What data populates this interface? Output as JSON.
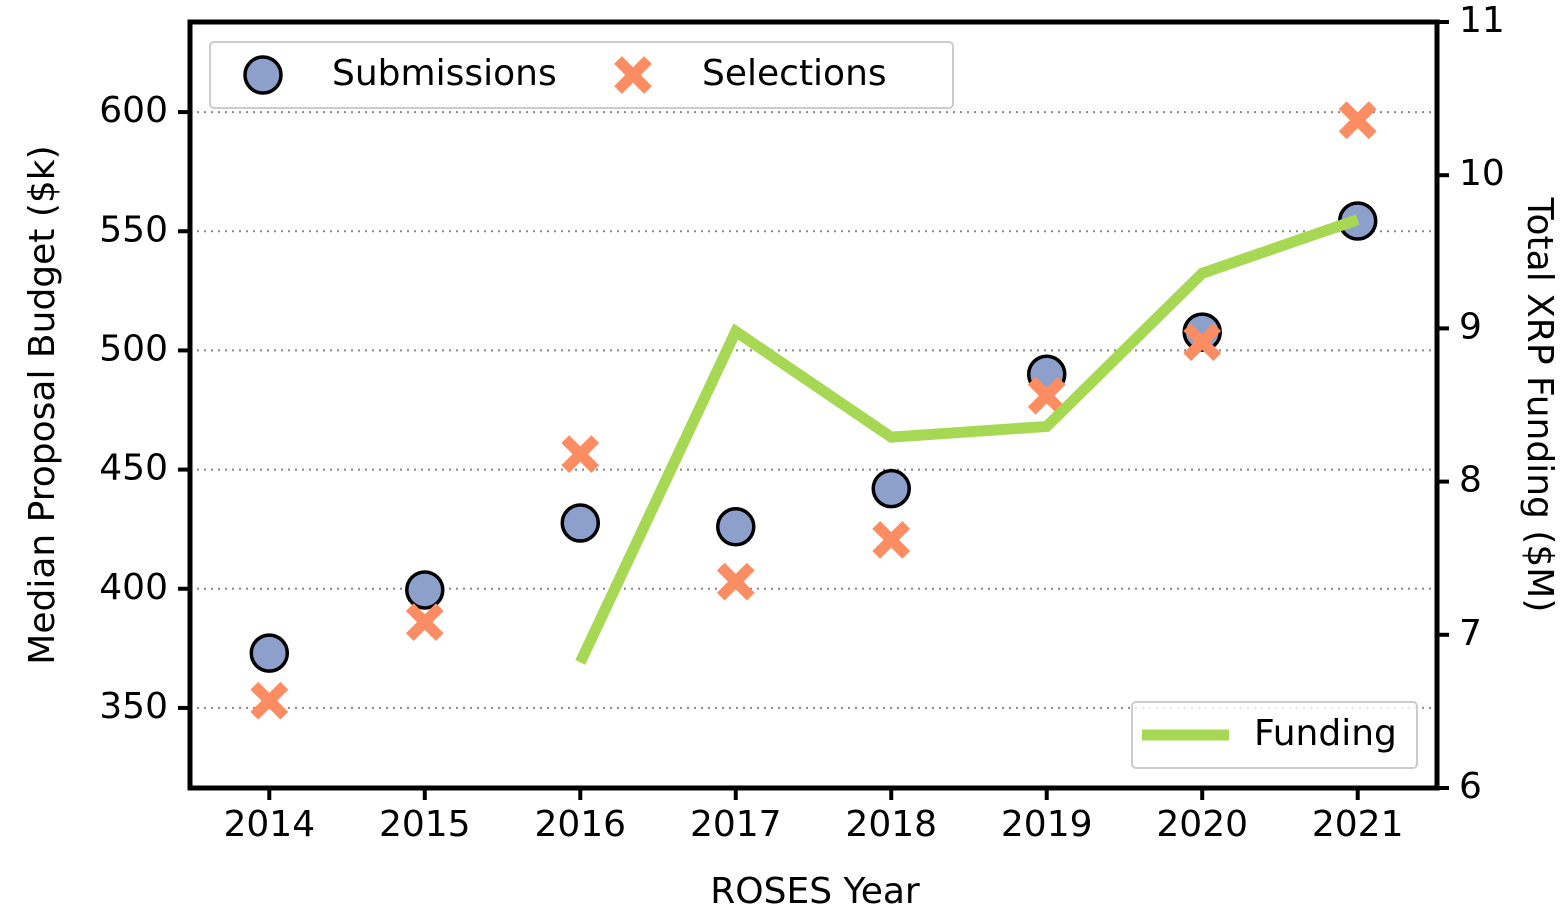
{
  "chart_data": {
    "type": "scatter",
    "xlabel": "ROSES Year",
    "ylabel": "Median Proposal Budget ($k)",
    "y2label": "Total XRP Funding ($M)",
    "x": [
      2014,
      2015,
      2016,
      2017,
      2018,
      2019,
      2020,
      2021
    ],
    "xlim": [
      2013.49,
      2021.51
    ],
    "xticks": [
      2014,
      2015,
      2016,
      2017,
      2018,
      2019,
      2020,
      2021
    ],
    "ylim": [
      316.4,
      637.8
    ],
    "yticks": [
      350,
      400,
      450,
      500,
      550,
      600
    ],
    "y2lim": [
      6,
      11
    ],
    "y2ticks": [
      6,
      7,
      8,
      9,
      10,
      11
    ],
    "grid": true,
    "series": [
      {
        "name": "Submissions",
        "type": "scatter",
        "marker": "o",
        "color": "#8da0cb",
        "legend": "upper left",
        "values": [
          373,
          399.5,
          427.6,
          426,
          442,
          490,
          507.7,
          554.3
        ]
      },
      {
        "name": "Selections",
        "type": "scatter",
        "marker": "x",
        "color": "#fc8d62",
        "legend": "upper left",
        "values": [
          353,
          386,
          456.5,
          403,
          420.5,
          481,
          503.5,
          596.6
        ]
      },
      {
        "name": "Funding",
        "type": "line",
        "axis": "y2",
        "color": "#a6d854",
        "legend": "lower right",
        "values": [
          null,
          null,
          6.82,
          8.98,
          8.29,
          8.36,
          9.36,
          9.71
        ]
      }
    ]
  }
}
